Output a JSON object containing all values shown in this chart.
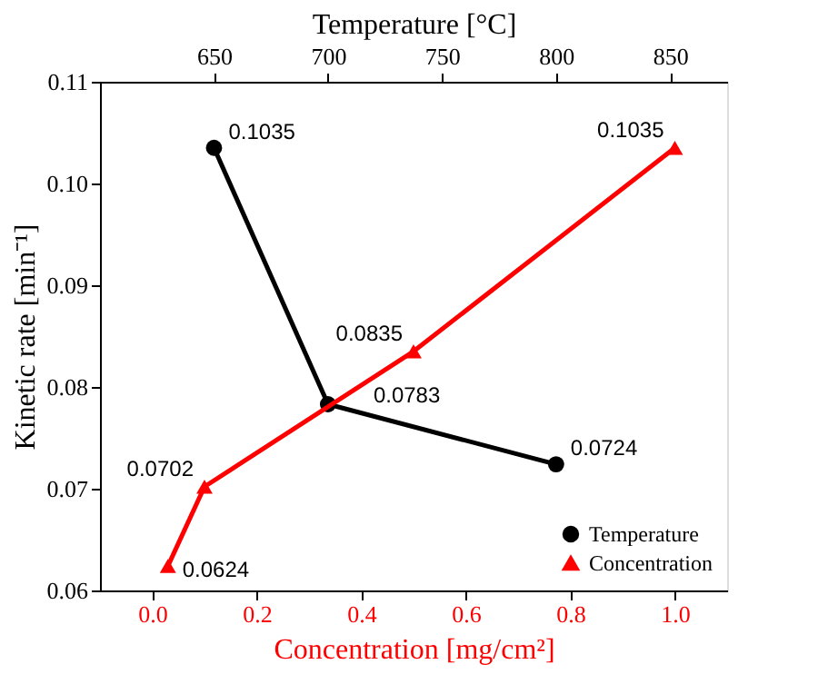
{
  "chart_data": {
    "type": "line",
    "xlabel": "Concentration [mg/cm²]",
    "x2label": "Temperature [°C]",
    "ylabel": "Kinetic rate [min⁻¹]",
    "xlim": [
      -0.1,
      1.1
    ],
    "xticks": [
      {
        "value": 0,
        "label": "0.0"
      },
      0.2,
      0.4,
      0.6,
      0.8,
      {
        "value": 1,
        "label": "1.0"
      }
    ],
    "x2lim": [
      600,
      875
    ],
    "x2ticks": [
      650,
      700,
      750,
      800,
      850
    ],
    "ylim": [
      0.06,
      0.11
    ],
    "yticks": [
      0.06,
      0.07,
      0.08,
      0.09,
      {
        "value": 0.1,
        "label": "0.10"
      },
      0.11
    ],
    "data_labels": true,
    "legend": "bottom right",
    "grid": false,
    "series": [
      {
        "name": "Temperature",
        "color": "#000000",
        "axis": "x2",
        "marker": "circle",
        "x": [
          650,
          700,
          800
        ],
        "values": [
          0.1035,
          0.0783,
          0.0724
        ]
      },
      {
        "name": "Concentration",
        "color": "#ff0000",
        "marker": "triangle",
        "x": [
          0.03,
          0.1,
          0.5,
          1.0
        ],
        "values": [
          0.0624,
          0.0702,
          0.0835,
          0.1035
        ]
      }
    ]
  }
}
